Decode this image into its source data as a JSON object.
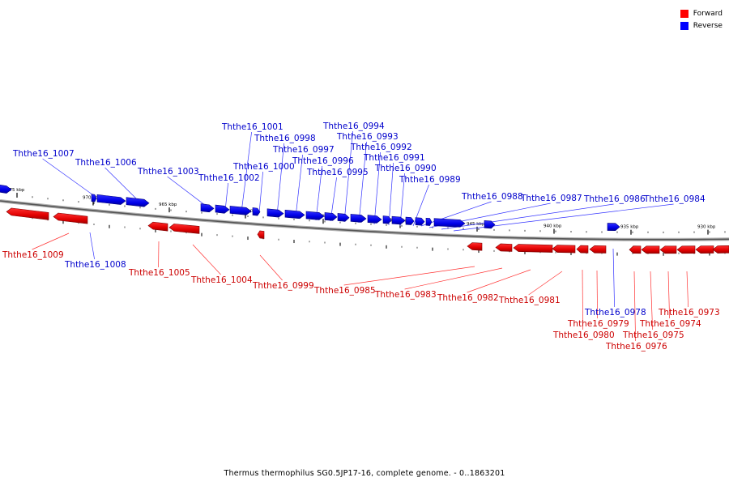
{
  "legend": {
    "forward_label": "Forward",
    "reverse_label": "Reverse",
    "forward_color": "#ff0000",
    "reverse_color": "#0000ff"
  },
  "caption": "Thermus thermophilus SG0.5JP17-16, complete genome. - 0..1863201",
  "scale_labels": [
    "975 kbp",
    "970 kbp",
    "965 kbp",
    "960 kbp",
    "955 kbp",
    "950 kbp",
    "945 kbp",
    "940 kbp",
    "935 kbp",
    "930 kbp"
  ],
  "reverse_genes": [
    "Ththe16_1007",
    "Ththe16_1006",
    "Ththe16_1003",
    "Ththe16_1002",
    "Ththe16_1001",
    "Ththe16_1000",
    "Ththe16_0998",
    "Ththe16_0997",
    "Ththe16_0996",
    "Ththe16_0995",
    "Ththe16_0994",
    "Ththe16_0993",
    "Ththe16_0992",
    "Ththe16_0991",
    "Ththe16_0990",
    "Ththe16_0989",
    "Ththe16_0988",
    "Ththe16_0987",
    "Ththe16_0986",
    "Ththe16_0984",
    "Ththe16_1008",
    "Ththe16_0978"
  ],
  "forward_genes": [
    "Ththe16_1009",
    "Ththe16_1005",
    "Ththe16_1004",
    "Ththe16_0999",
    "Ththe16_0985",
    "Ththe16_0983",
    "Ththe16_0982",
    "Ththe16_0981",
    "Ththe16_0980",
    "Ththe16_0979",
    "Ththe16_0976",
    "Ththe16_0975",
    "Ththe16_0974",
    "Ththe16_0973"
  ],
  "icons": [
    "forward-strand-swatch",
    "reverse-strand-swatch"
  ]
}
